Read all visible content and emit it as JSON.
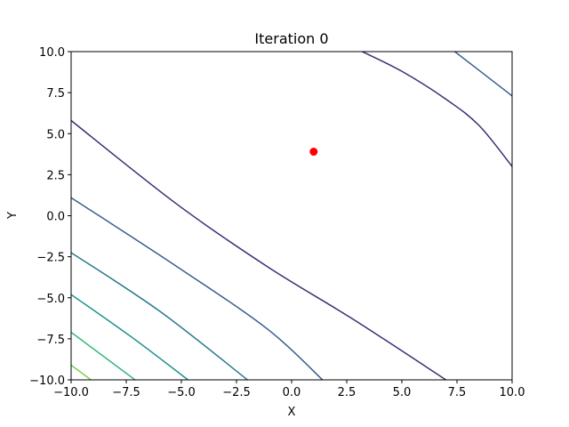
{
  "chart_data": {
    "type": "contour",
    "title": "Iteration 0",
    "x_label": "X",
    "y_label": "Y",
    "xlim": [
      -10,
      10
    ],
    "ylim": [
      -10,
      10
    ],
    "xticks": [
      {
        "value": -10,
        "label": "−10.0"
      },
      {
        "value": -7.5,
        "label": "−7.5"
      },
      {
        "value": -5,
        "label": "−5.0"
      },
      {
        "value": -2.5,
        "label": "−2.5"
      },
      {
        "value": 0,
        "label": "0.0"
      },
      2.5,
      {
        "value": 5,
        "label": "5.0"
      },
      7.5,
      {
        "value": 10,
        "label": "10.0"
      }
    ],
    "yticks": [
      {
        "value": -10,
        "label": "−10.0"
      },
      {
        "value": -7.5,
        "label": "−7.5"
      },
      {
        "value": -5,
        "label": "−5.0"
      },
      {
        "value": -2.5,
        "label": "−2.5"
      },
      {
        "value": 0,
        "label": "0.0"
      },
      2.5,
      {
        "value": 5,
        "label": "5.0"
      },
      7.5,
      {
        "value": 10,
        "label": "10.0"
      }
    ],
    "series": [
      {
        "color": "#3b2f73",
        "x": [
          3.2,
          5,
          7,
          8.5,
          10
        ],
        "y": [
          10,
          8.8,
          7.1,
          5.5,
          3.0
        ]
      },
      {
        "color": "#3b2f73",
        "x": [
          -10,
          -5.2,
          -1.1,
          2.9,
          7.0
        ],
        "y": [
          5.8,
          0.7,
          -3.1,
          -6.4,
          -10
        ]
      },
      {
        "color": "#355f8d",
        "x": [
          7.4,
          8.75,
          10
        ],
        "y": [
          10,
          8.6,
          7.3
        ]
      },
      {
        "color": "#355f8d",
        "x": [
          -10,
          -5.2,
          -1.1,
          1.4
        ],
        "y": [
          1.1,
          -3.1,
          -6.9,
          -10
        ]
      },
      {
        "color": "#2a788e",
        "x": [
          -10,
          -6.0,
          -2.0
        ],
        "y": [
          -2.25,
          -5.8,
          -10
        ]
      },
      {
        "color": "#21918c",
        "x": [
          -10,
          -7.2,
          -4.7
        ],
        "y": [
          -4.8,
          -7.45,
          -10
        ]
      },
      {
        "color": "#35b779",
        "x": [
          -10,
          -7.1
        ],
        "y": [
          -7.1,
          -10
        ]
      },
      {
        "color": "#7ad151",
        "x": [
          -10,
          -9.1
        ],
        "y": [
          -9.1,
          -10
        ]
      }
    ],
    "points": {
      "color": "#ff0000",
      "x": [
        1.0
      ],
      "y": [
        3.9
      ]
    }
  }
}
